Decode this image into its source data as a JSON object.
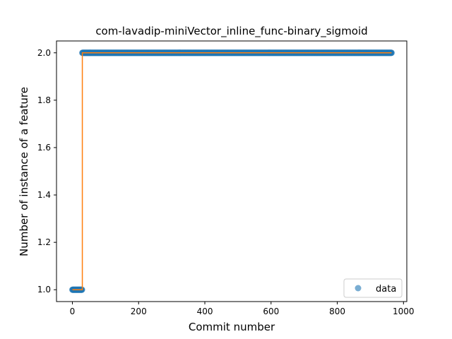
{
  "chart_data": {
    "type": "scatter",
    "title": "com-lavadip-miniVector_inline_func-binary_sigmoid",
    "xlabel": "Commit number",
    "ylabel": "Number of instance of a feature",
    "xlim": [
      -48,
      1010
    ],
    "ylim": [
      0.95,
      2.05
    ],
    "x_ticks": [
      0,
      200,
      400,
      600,
      800,
      1000
    ],
    "x_tick_labels": [
      "0",
      "200",
      "400",
      "600",
      "800",
      "1000"
    ],
    "y_ticks": [
      1.0,
      1.2,
      1.4,
      1.6,
      1.8,
      2.0
    ],
    "y_tick_labels": [
      "1.0",
      "1.2",
      "1.4",
      "1.6",
      "1.8",
      "2.0"
    ],
    "grid": false,
    "legend": {
      "placement": "lower right",
      "entries": [
        "data"
      ]
    },
    "series": [
      {
        "name": "data",
        "kind": "scatter",
        "color": "#1f77b4",
        "alpha": 0.6,
        "segments": [
          {
            "x_start": 0,
            "x_end": 29,
            "y": 1.0
          },
          {
            "x_start": 30,
            "x_end": 964,
            "y": 2.0
          }
        ]
      },
      {
        "kind": "step-line",
        "color": "#ff7f0e",
        "points": [
          [
            0,
            1.0
          ],
          [
            30,
            1.0
          ],
          [
            30,
            2.0
          ],
          [
            964,
            2.0
          ]
        ]
      }
    ]
  }
}
